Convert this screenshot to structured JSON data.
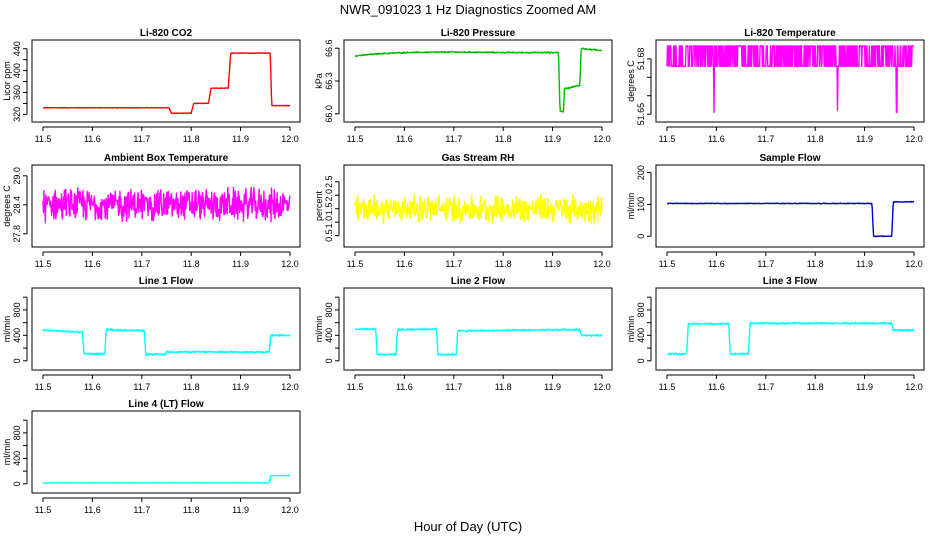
{
  "figure": {
    "title": "NWR_091023  1 Hz Diagnostics Zoomed AM",
    "xlabel": "Hour of Day (UTC)"
  },
  "chart_data": [
    {
      "id": "co2",
      "type": "line",
      "title": "Li-820 CO2",
      "xlabel": "",
      "ylabel": "Licor ppm",
      "color": "#ff0000",
      "noise": 0.4,
      "xlim": [
        11.5,
        12.0
      ],
      "ylim": [
        317,
        445
      ],
      "xticks": [
        11.5,
        11.6,
        11.7,
        11.8,
        11.9,
        12.0
      ],
      "yticks": [
        320,
        340,
        360,
        380,
        400,
        420,
        440
      ],
      "ytick_labels": [
        "320",
        "",
        "360",
        "",
        "400",
        "",
        "440"
      ],
      "steps": [
        [
          11.5,
          332
        ],
        [
          11.755,
          332
        ],
        [
          11.76,
          322
        ],
        [
          11.8,
          322
        ],
        [
          11.805,
          340
        ],
        [
          11.835,
          340
        ],
        [
          11.84,
          368
        ],
        [
          11.875,
          368
        ],
        [
          11.88,
          432
        ],
        [
          11.96,
          432
        ],
        [
          11.963,
          336
        ],
        [
          12.0,
          336
        ]
      ]
    },
    {
      "id": "pressure",
      "type": "line",
      "title": "Li-820 Pressure",
      "xlabel": "",
      "ylabel": "kPa",
      "color": "#00bb00",
      "noise": 0.005,
      "xlim": [
        11.5,
        12.0
      ],
      "ylim": [
        65.98,
        66.62
      ],
      "xticks": [
        11.5,
        11.6,
        11.7,
        11.8,
        11.9,
        12.0
      ],
      "yticks": [
        66.0,
        66.3,
        66.6
      ],
      "ytick_labels": [
        "66.0",
        "66.3",
        "66.6"
      ],
      "steps": [
        [
          11.5,
          66.53
        ],
        [
          11.55,
          66.55
        ],
        [
          11.6,
          66.56
        ],
        [
          11.7,
          66.565
        ],
        [
          11.8,
          66.56
        ],
        [
          11.9,
          66.56
        ],
        [
          11.912,
          66.56
        ],
        [
          11.915,
          66.02
        ],
        [
          11.922,
          66.02
        ],
        [
          11.924,
          66.23
        ],
        [
          11.955,
          66.26
        ],
        [
          11.958,
          66.6
        ],
        [
          11.97,
          66.59
        ],
        [
          12.0,
          66.58
        ]
      ]
    },
    {
      "id": "temperature",
      "type": "line",
      "title": "Li-820 Temperature",
      "xlabel": "",
      "ylabel": "degrees C",
      "color": "#ff00ff",
      "noise": 0,
      "xlim": [
        11.5,
        12.0
      ],
      "ylim": [
        51.649,
        51.687
      ],
      "xticks": [
        11.5,
        11.6,
        11.7,
        11.8,
        11.9,
        12.0
      ],
      "yticks": [
        51.65,
        51.66,
        51.67,
        51.68
      ],
      "ytick_labels": [
        "51.65",
        "",
        "",
        "51.68"
      ],
      "levels": [
        51.676,
        51.687
      ],
      "dips": [
        [
          11.595,
          51.651
        ],
        [
          11.845,
          51.652
        ],
        [
          11.965,
          51.651
        ]
      ],
      "steps": [
        [
          11.5,
          51.676
        ],
        [
          12.0,
          51.676
        ]
      ]
    },
    {
      "id": "ambient",
      "type": "line",
      "title": "Ambient Box Temperature",
      "xlabel": "",
      "ylabel": "degrees C",
      "color": "#ff00ff",
      "noise": 0.28,
      "xlim": [
        11.5,
        12.0
      ],
      "ylim": [
        27.65,
        29.1
      ],
      "xticks": [
        11.5,
        11.6,
        11.7,
        11.8,
        11.9,
        12.0
      ],
      "yticks": [
        27.8,
        28.4,
        29.0
      ],
      "ytick_labels": [
        "27.8",
        "28.4",
        "29.0"
      ],
      "steps": [
        [
          11.5,
          28.4
        ],
        [
          12.0,
          28.4
        ]
      ]
    },
    {
      "id": "rh",
      "type": "line",
      "title": "Gas Stream RH",
      "xlabel": "",
      "ylabel": "percent",
      "color": "#ffff00",
      "noise": 0.42,
      "xlim": [
        11.5,
        12.0
      ],
      "ylim": [
        0.3,
        2.9
      ],
      "xticks": [
        11.5,
        11.6,
        11.7,
        11.8,
        11.9,
        12.0
      ],
      "yticks": [
        0.5,
        1.0,
        1.5,
        2.0,
        2.5
      ],
      "ytick_labels": [
        "0.5",
        "1.0",
        "1.5",
        "2.0",
        "2.5"
      ],
      "steps": [
        [
          11.5,
          1.5
        ],
        [
          12.0,
          1.5
        ]
      ]
    },
    {
      "id": "sample",
      "type": "line",
      "title": "Sample Flow",
      "xlabel": "",
      "ylabel": "ml/min",
      "color": "#0000cc",
      "noise": 1.0,
      "xlim": [
        11.5,
        12.0
      ],
      "ylim": [
        -15,
        205
      ],
      "xticks": [
        11.5,
        11.6,
        11.7,
        11.8,
        11.9,
        12.0
      ],
      "yticks": [
        0,
        100,
        200
      ],
      "ytick_labels": [
        "0",
        "100",
        "200"
      ],
      "steps": [
        [
          11.5,
          103
        ],
        [
          11.915,
          103
        ],
        [
          11.918,
          0
        ],
        [
          11.955,
          0
        ],
        [
          11.958,
          108
        ],
        [
          12.0,
          108
        ]
      ]
    },
    {
      "id": "line1",
      "type": "line",
      "title": "Line 1 Flow",
      "xlabel": "",
      "ylabel": "ml/min",
      "color": "#00ffff",
      "noise": 12,
      "xlim": [
        11.5,
        12.0
      ],
      "ylim": [
        -50,
        1050
      ],
      "xticks": [
        11.5,
        11.6,
        11.7,
        11.8,
        11.9,
        12.0
      ],
      "yticks": [
        0,
        200,
        400,
        600,
        800,
        1000
      ],
      "ytick_labels": [
        "0",
        "",
        "400",
        "",
        "800",
        ""
      ],
      "steps": [
        [
          11.5,
          480
        ],
        [
          11.58,
          450
        ],
        [
          11.583,
          110
        ],
        [
          11.625,
          110
        ],
        [
          11.628,
          490
        ],
        [
          11.705,
          470
        ],
        [
          11.708,
          100
        ],
        [
          11.748,
          100
        ],
        [
          11.75,
          140
        ],
        [
          11.958,
          140
        ],
        [
          11.961,
          400
        ],
        [
          12.0,
          400
        ]
      ]
    },
    {
      "id": "line2",
      "type": "line",
      "title": "Line 2 Flow",
      "xlabel": "",
      "ylabel": "ml/min",
      "color": "#00ffff",
      "noise": 12,
      "xlim": [
        11.5,
        12.0
      ],
      "ylim": [
        -50,
        1050
      ],
      "xticks": [
        11.5,
        11.6,
        11.7,
        11.8,
        11.9,
        12.0
      ],
      "yticks": [
        0,
        200,
        400,
        600,
        800,
        1000
      ],
      "ytick_labels": [
        "0",
        "",
        "400",
        "",
        "800",
        ""
      ],
      "steps": [
        [
          11.5,
          500
        ],
        [
          11.542,
          500
        ],
        [
          11.545,
          100
        ],
        [
          11.583,
          100
        ],
        [
          11.586,
          490
        ],
        [
          11.665,
          500
        ],
        [
          11.668,
          100
        ],
        [
          11.705,
          100
        ],
        [
          11.708,
          470
        ],
        [
          11.955,
          490
        ],
        [
          11.958,
          400
        ],
        [
          12.0,
          400
        ]
      ]
    },
    {
      "id": "line3",
      "type": "line",
      "title": "Line 3 Flow",
      "xlabel": "",
      "ylabel": "ml/min",
      "color": "#00ffff",
      "noise": 12,
      "xlim": [
        11.5,
        12.0
      ],
      "ylim": [
        -50,
        1050
      ],
      "xticks": [
        11.5,
        11.6,
        11.7,
        11.8,
        11.9,
        12.0
      ],
      "yticks": [
        0,
        200,
        400,
        600,
        800,
        1000
      ],
      "ytick_labels": [
        "0",
        "",
        "400",
        "",
        "800",
        ""
      ],
      "steps": [
        [
          11.5,
          110
        ],
        [
          11.54,
          110
        ],
        [
          11.543,
          580
        ],
        [
          11.625,
          580
        ],
        [
          11.628,
          110
        ],
        [
          11.665,
          110
        ],
        [
          11.668,
          590
        ],
        [
          11.955,
          590
        ],
        [
          11.958,
          480
        ],
        [
          12.0,
          480
        ]
      ]
    },
    {
      "id": "line4",
      "type": "line",
      "title": "Line 4 (LT) Flow",
      "xlabel": "",
      "ylabel": "ml/min",
      "color": "#00ffff",
      "noise": 3,
      "xlim": [
        11.5,
        12.0
      ],
      "ylim": [
        -50,
        1050
      ],
      "xticks": [
        11.5,
        11.6,
        11.7,
        11.8,
        11.9,
        12.0
      ],
      "yticks": [
        0,
        200,
        400,
        600,
        800,
        1000
      ],
      "ytick_labels": [
        "0",
        "",
        "400",
        "",
        "800",
        ""
      ],
      "steps": [
        [
          11.5,
          15
        ],
        [
          11.958,
          15
        ],
        [
          11.961,
          130
        ],
        [
          12.0,
          130
        ]
      ]
    }
  ]
}
